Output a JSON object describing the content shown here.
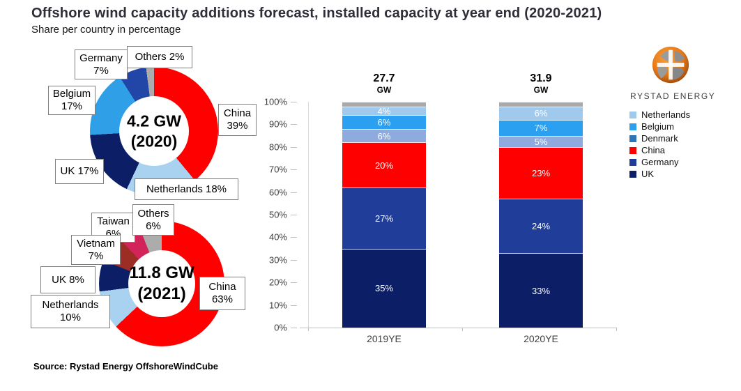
{
  "header": {
    "title": "Offshore wind capacity additions forecast, installed capacity at year end (2020-2021)",
    "subtitle": "Share per country in percentage"
  },
  "source_note": "Source: Rystad Energy OffshoreWindCube",
  "logo": {
    "wordmark": "RYSTAD ENERGY",
    "globe_icon": "globe-icon",
    "brand_orange": "#E87817"
  },
  "legend": {
    "position": "right",
    "items": [
      {
        "label": "Netherlands",
        "color": "#9FCAEE"
      },
      {
        "label": "Belgium",
        "color": "#2B9FF0"
      },
      {
        "label": "Denmark",
        "color": "#2E75B6"
      },
      {
        "label": "China",
        "color": "#FE0000"
      },
      {
        "label": "Germany",
        "color": "#1F3D99"
      },
      {
        "label": "UK",
        "color": "#0B1E66"
      }
    ]
  },
  "chart_data": [
    {
      "type": "pie",
      "subtype": "donut",
      "center_value": "4.2 GW",
      "center_year": "(2020)",
      "segments": [
        {
          "label": "China",
          "pct": 39,
          "color": "#FE0000"
        },
        {
          "label": "Netherlands",
          "pct": 18,
          "color": "#A8D2F0"
        },
        {
          "label": "UK",
          "pct": 17,
          "color": "#0B1E66"
        },
        {
          "label": "Belgium",
          "pct": 17,
          "color": "#2FA0E8"
        },
        {
          "label": "Germany",
          "pct": 7,
          "color": "#2246A8"
        },
        {
          "label": "Others",
          "pct": 2,
          "color": "#ACACAC"
        }
      ],
      "callouts": [
        {
          "text": "Germany\n7%"
        },
        {
          "text": "Others 2%"
        },
        {
          "text": "Belgium\n17%"
        },
        {
          "text": "China\n39%"
        },
        {
          "text": "UK 17%"
        },
        {
          "text": "Netherlands 18%"
        }
      ]
    },
    {
      "type": "pie",
      "subtype": "donut",
      "center_value": "11.8 GW",
      "center_year": "(2021)",
      "segments": [
        {
          "label": "China",
          "pct": 63,
          "color": "#FE0000"
        },
        {
          "label": "Netherlands",
          "pct": 10,
          "color": "#A8D2F0"
        },
        {
          "label": "UK",
          "pct": 8,
          "color": "#0B1E66"
        },
        {
          "label": "Vietnam",
          "pct": 7,
          "color": "#9B2D24"
        },
        {
          "label": "Taiwan",
          "pct": 6,
          "color": "#D2235A"
        },
        {
          "label": "Others",
          "pct": 6,
          "color": "#ACACAC"
        }
      ],
      "callouts": [
        {
          "text": "Taiwan\n6%"
        },
        {
          "text": "Others\n6%"
        },
        {
          "text": "Vietnam\n7%"
        },
        {
          "text": "UK 8%"
        },
        {
          "text": "Netherlands\n10%"
        },
        {
          "text": "China\n63%"
        }
      ]
    },
    {
      "type": "bar",
      "subtype": "stacked-100",
      "categories": [
        "2019YE",
        "2020YE"
      ],
      "totals": [
        {
          "value": "27.7",
          "unit": "GW"
        },
        {
          "value": "31.9",
          "unit": "GW"
        }
      ],
      "ylim": [
        0,
        100
      ],
      "yticks": [
        "0%",
        "10%",
        "20%",
        "30%",
        "40%",
        "50%",
        "60%",
        "70%",
        "80%",
        "90%",
        "100%"
      ],
      "grid": false,
      "series": [
        {
          "name": "UK",
          "color": "#0B1E66",
          "values": [
            35,
            33
          ]
        },
        {
          "name": "Germany",
          "color": "#1F3D99",
          "values": [
            27,
            24
          ]
        },
        {
          "name": "China",
          "color": "#FE0000",
          "values": [
            20,
            23
          ]
        },
        {
          "name": "Denmark",
          "color": "#8FAADC",
          "values": [
            6,
            5
          ]
        },
        {
          "name": "Belgium",
          "color": "#2B9FF0",
          "values": [
            6,
            7
          ]
        },
        {
          "name": "Netherlands",
          "color": "#9FCAEE",
          "values": [
            4,
            6
          ]
        },
        {
          "name": "Others",
          "color": "#A9A9A9",
          "values": [
            2,
            2
          ],
          "show_label": false
        }
      ]
    }
  ]
}
